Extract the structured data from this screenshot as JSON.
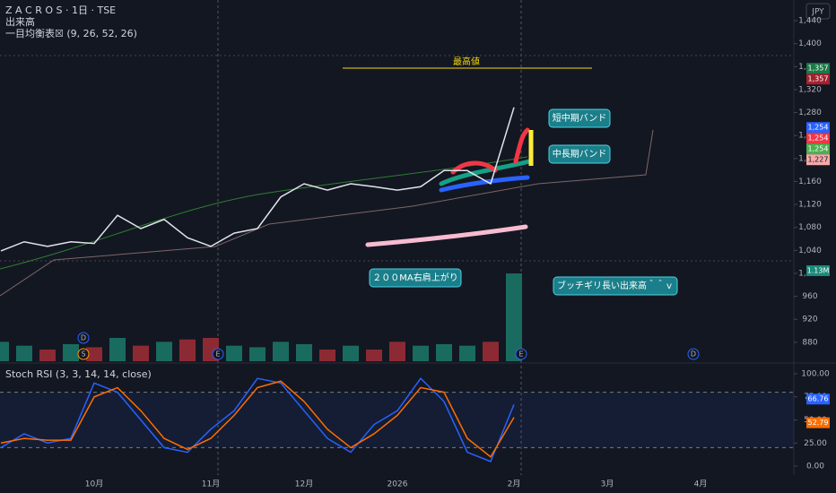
{
  "header": {
    "symbol": "Z A C R O S · 1日 · TSE",
    "volume_label": "出来高",
    "ichimoku_label": "一目均衡表☒ (9, 26, 52, 26)",
    "currency": "JPY"
  },
  "events": [
    "D",
    "S",
    "E",
    "E",
    "D",
    "E"
  ],
  "chart_data": [
    {
      "type": "line",
      "name": "price",
      "color": "#e0e3eb",
      "categories": [
        null,
        null,
        null,
        null,
        "10月",
        null,
        null,
        null,
        null,
        "11月",
        null,
        null,
        null,
        "12月",
        null,
        null,
        null,
        "2026",
        null,
        null,
        null,
        null,
        "2月",
        null,
        null,
        null,
        "3月",
        null,
        null,
        null,
        "4月",
        null,
        null,
        null
      ],
      "values": [
        1039,
        1055,
        1047,
        1055,
        1052,
        1101,
        1078,
        1094,
        1062,
        1047,
        1070,
        1078,
        1133,
        1156,
        1145,
        1156,
        1151,
        1145,
        1151,
        1179,
        1179,
        1156,
        1289,
        null,
        null,
        null,
        null,
        null,
        null,
        null,
        null,
        null,
        null,
        null
      ],
      "ylim": [
        847,
        1476
      ],
      "yticks": [
        880,
        920,
        960,
        {
          "value": 1000,
          "label": "1,000"
        },
        {
          "value": 1040,
          "label": "1,040"
        },
        {
          "value": 1080,
          "label": "1,080"
        },
        {
          "value": 1120,
          "label": "1,120"
        },
        {
          "value": 1160,
          "label": "1,160"
        },
        {
          "value": 1200,
          "label": "1,200"
        },
        {
          "value": 1240,
          "label": "1,240"
        },
        {
          "value": 1280,
          "label": "1,280"
        },
        {
          "value": 1320,
          "label": "1,320"
        },
        {
          "value": 1360,
          "label": "1,360"
        },
        {
          "value": 1400,
          "label": "1,400"
        },
        {
          "value": 1440,
          "label": "1,440"
        }
      ],
      "price_tags": [
        {
          "value": 1357,
          "label": "1,357",
          "color": "#1b7a47"
        },
        {
          "value": 1357,
          "label": "1,357",
          "color": "#a3222d"
        },
        {
          "value": 1254,
          "label": "1,254",
          "color": "#2962ff"
        },
        {
          "value": 1254,
          "label": "1,254",
          "color": "#f23645"
        },
        {
          "value": 1254,
          "label": "1,254",
          "color": "#4caf50"
        },
        {
          "value": 1227,
          "label": "1,227",
          "color": "#f7a9a8"
        }
      ],
      "annotations": [
        "最高値",
        "短中期バンド",
        "中長期バンド",
        "２００MA右肩上がり",
        "ブッチギリ長い出来高＾＾ｖ"
      ]
    },
    {
      "type": "bar",
      "name": "volume",
      "up_color": "#1a6b5f",
      "down_color": "#8c2a34",
      "values": [
        0.25,
        0.2,
        0.15,
        0.22,
        0.18,
        0.3,
        0.2,
        0.25,
        0.28,
        0.3,
        0.2,
        0.18,
        0.25,
        0.22,
        0.15,
        0.2,
        0.15,
        0.25,
        0.2,
        0.22,
        0.2,
        0.25,
        1.13,
        null,
        null,
        null,
        null,
        null,
        null,
        null,
        null,
        null,
        null,
        null
      ],
      "value_labels": [
        null,
        null,
        null,
        null,
        null,
        null,
        null,
        null,
        null,
        null,
        null,
        null,
        null,
        null,
        null,
        null,
        null,
        null,
        null,
        null,
        null,
        null,
        "1.13M",
        null,
        null,
        null,
        null,
        null,
        null,
        null,
        null,
        null,
        null,
        null
      ],
      "ylim": [
        0,
        4.65
      ]
    },
    {
      "type": "line",
      "title": "Stoch RSI (3, 3, 14, 14, close)",
      "bands": [
        20,
        80
      ],
      "series": [
        {
          "name": "K",
          "color": "#2962ff",
          "values": [
            20,
            35,
            25,
            30,
            90,
            80,
            50,
            20,
            15,
            40,
            60,
            95,
            90,
            60,
            30,
            15,
            45,
            60,
            95,
            70,
            15,
            5,
            66.76,
            null,
            null,
            null,
            null,
            null,
            null,
            null,
            null,
            null,
            null,
            null
          ]
        },
        {
          "name": "D",
          "color": "#ff6d00",
          "values": [
            25,
            30,
            28,
            28,
            75,
            85,
            60,
            30,
            18,
            30,
            55,
            85,
            92,
            70,
            40,
            20,
            35,
            55,
            85,
            80,
            30,
            10,
            52.79,
            null,
            null,
            null,
            null,
            null,
            null,
            null,
            null,
            null,
            null,
            null
          ]
        }
      ],
      "ylim": [
        -9.7,
        109.7
      ],
      "yticks": [
        {
          "value": 0,
          "label": "0.00"
        },
        {
          "value": 25,
          "label": "25.00"
        },
        {
          "value": 50,
          "label": "50.00"
        },
        {
          "value": 75,
          "label": "75.00"
        },
        {
          "value": 100,
          "label": "100.00"
        }
      ]
    }
  ]
}
